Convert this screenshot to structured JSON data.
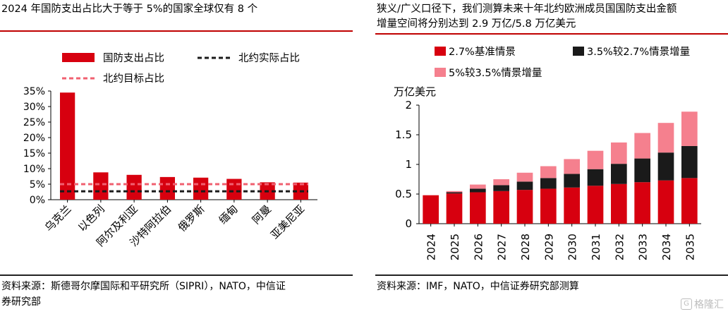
{
  "left": {
    "title": "2024 年国防支出占比大于等于 5%的国家全球仅有 8 个",
    "legend": {
      "bar": "国防支出占比",
      "actual": "北约实际占比",
      "target": "北约目标占比"
    },
    "source_line1": "资料来源：斯德哥尔摩国际和平研究所（SIPRI），NATO，中信证",
    "source_line2": "券研究部"
  },
  "right": {
    "title_line1": "狭义/广义口径下，我们测算未来十年北约欧洲成员国国防支出金额",
    "title_line2": "增量空间将分别达到 2.9 万亿/5.8 万亿美元",
    "legend": {
      "base": "2.7%基准情景",
      "mid": "3.5%较2.7%情景增量",
      "high": "5%较3.5%情景增量"
    },
    "source": "资料来源：IMF，NATO，中信证券研究部测算"
  },
  "watermark": "格隆汇",
  "colors": {
    "red": "#d7000f",
    "black": "#1a1a1a",
    "pink": "#f5808e",
    "dashed_red": "#f06070",
    "rule": "#c00000"
  },
  "chart_data": [
    {
      "type": "bar",
      "title": "2024 年国防支出占比大于等于 5%的国家全球仅有 8 个",
      "categories": [
        "乌克兰",
        "以色列",
        "阿尔及利亚",
        "沙特阿拉伯",
        "俄罗斯",
        "缅甸",
        "阿曼",
        "亚美尼亚"
      ],
      "series": [
        {
          "name": "国防支出占比",
          "values": [
            34.5,
            8.8,
            8.0,
            7.3,
            7.1,
            6.7,
            5.6,
            5.5
          ]
        }
      ],
      "reference_lines": [
        {
          "name": "北约实际占比",
          "value": 2.7,
          "style": "dashed",
          "color": "#1a1a1a"
        },
        {
          "name": "北约目标占比",
          "value": 5.0,
          "style": "dashed",
          "color": "#f06070"
        }
      ],
      "yticks": [
        "0%",
        "5%",
        "10%",
        "15%",
        "20%",
        "25%",
        "30%",
        "35%"
      ],
      "ylim": [
        0,
        35
      ],
      "ylabel": "",
      "xlabel": "",
      "legend_position": "top"
    },
    {
      "type": "bar",
      "stacked": true,
      "title": "狭义/广义口径下，我们测算未来十年北约欧洲成员国国防支出金额增量空间将分别达到 2.9 万亿/5.8 万亿美元",
      "categories": [
        "2024",
        "2025",
        "2026",
        "2027",
        "2028",
        "2029",
        "2030",
        "2031",
        "2032",
        "2033",
        "2034",
        "2035"
      ],
      "series": [
        {
          "name": "2.7%基准情景",
          "values": [
            0.48,
            0.51,
            0.53,
            0.55,
            0.57,
            0.59,
            0.61,
            0.64,
            0.67,
            0.7,
            0.73,
            0.77
          ]
        },
        {
          "name": "3.5%较2.7%情景增量",
          "values": [
            0.0,
            0.02,
            0.06,
            0.1,
            0.14,
            0.18,
            0.23,
            0.28,
            0.34,
            0.4,
            0.47,
            0.54
          ]
        },
        {
          "name": "5%较3.5%情景增量",
          "values": [
            0.0,
            0.02,
            0.07,
            0.1,
            0.15,
            0.2,
            0.25,
            0.31,
            0.36,
            0.43,
            0.5,
            0.58
          ]
        }
      ],
      "ylabel": "万亿美元",
      "yticks": [
        "0",
        "0.5",
        "1",
        "1.5",
        "2"
      ],
      "ylim": [
        0,
        2
      ],
      "xlabel": "",
      "legend_position": "top"
    }
  ]
}
